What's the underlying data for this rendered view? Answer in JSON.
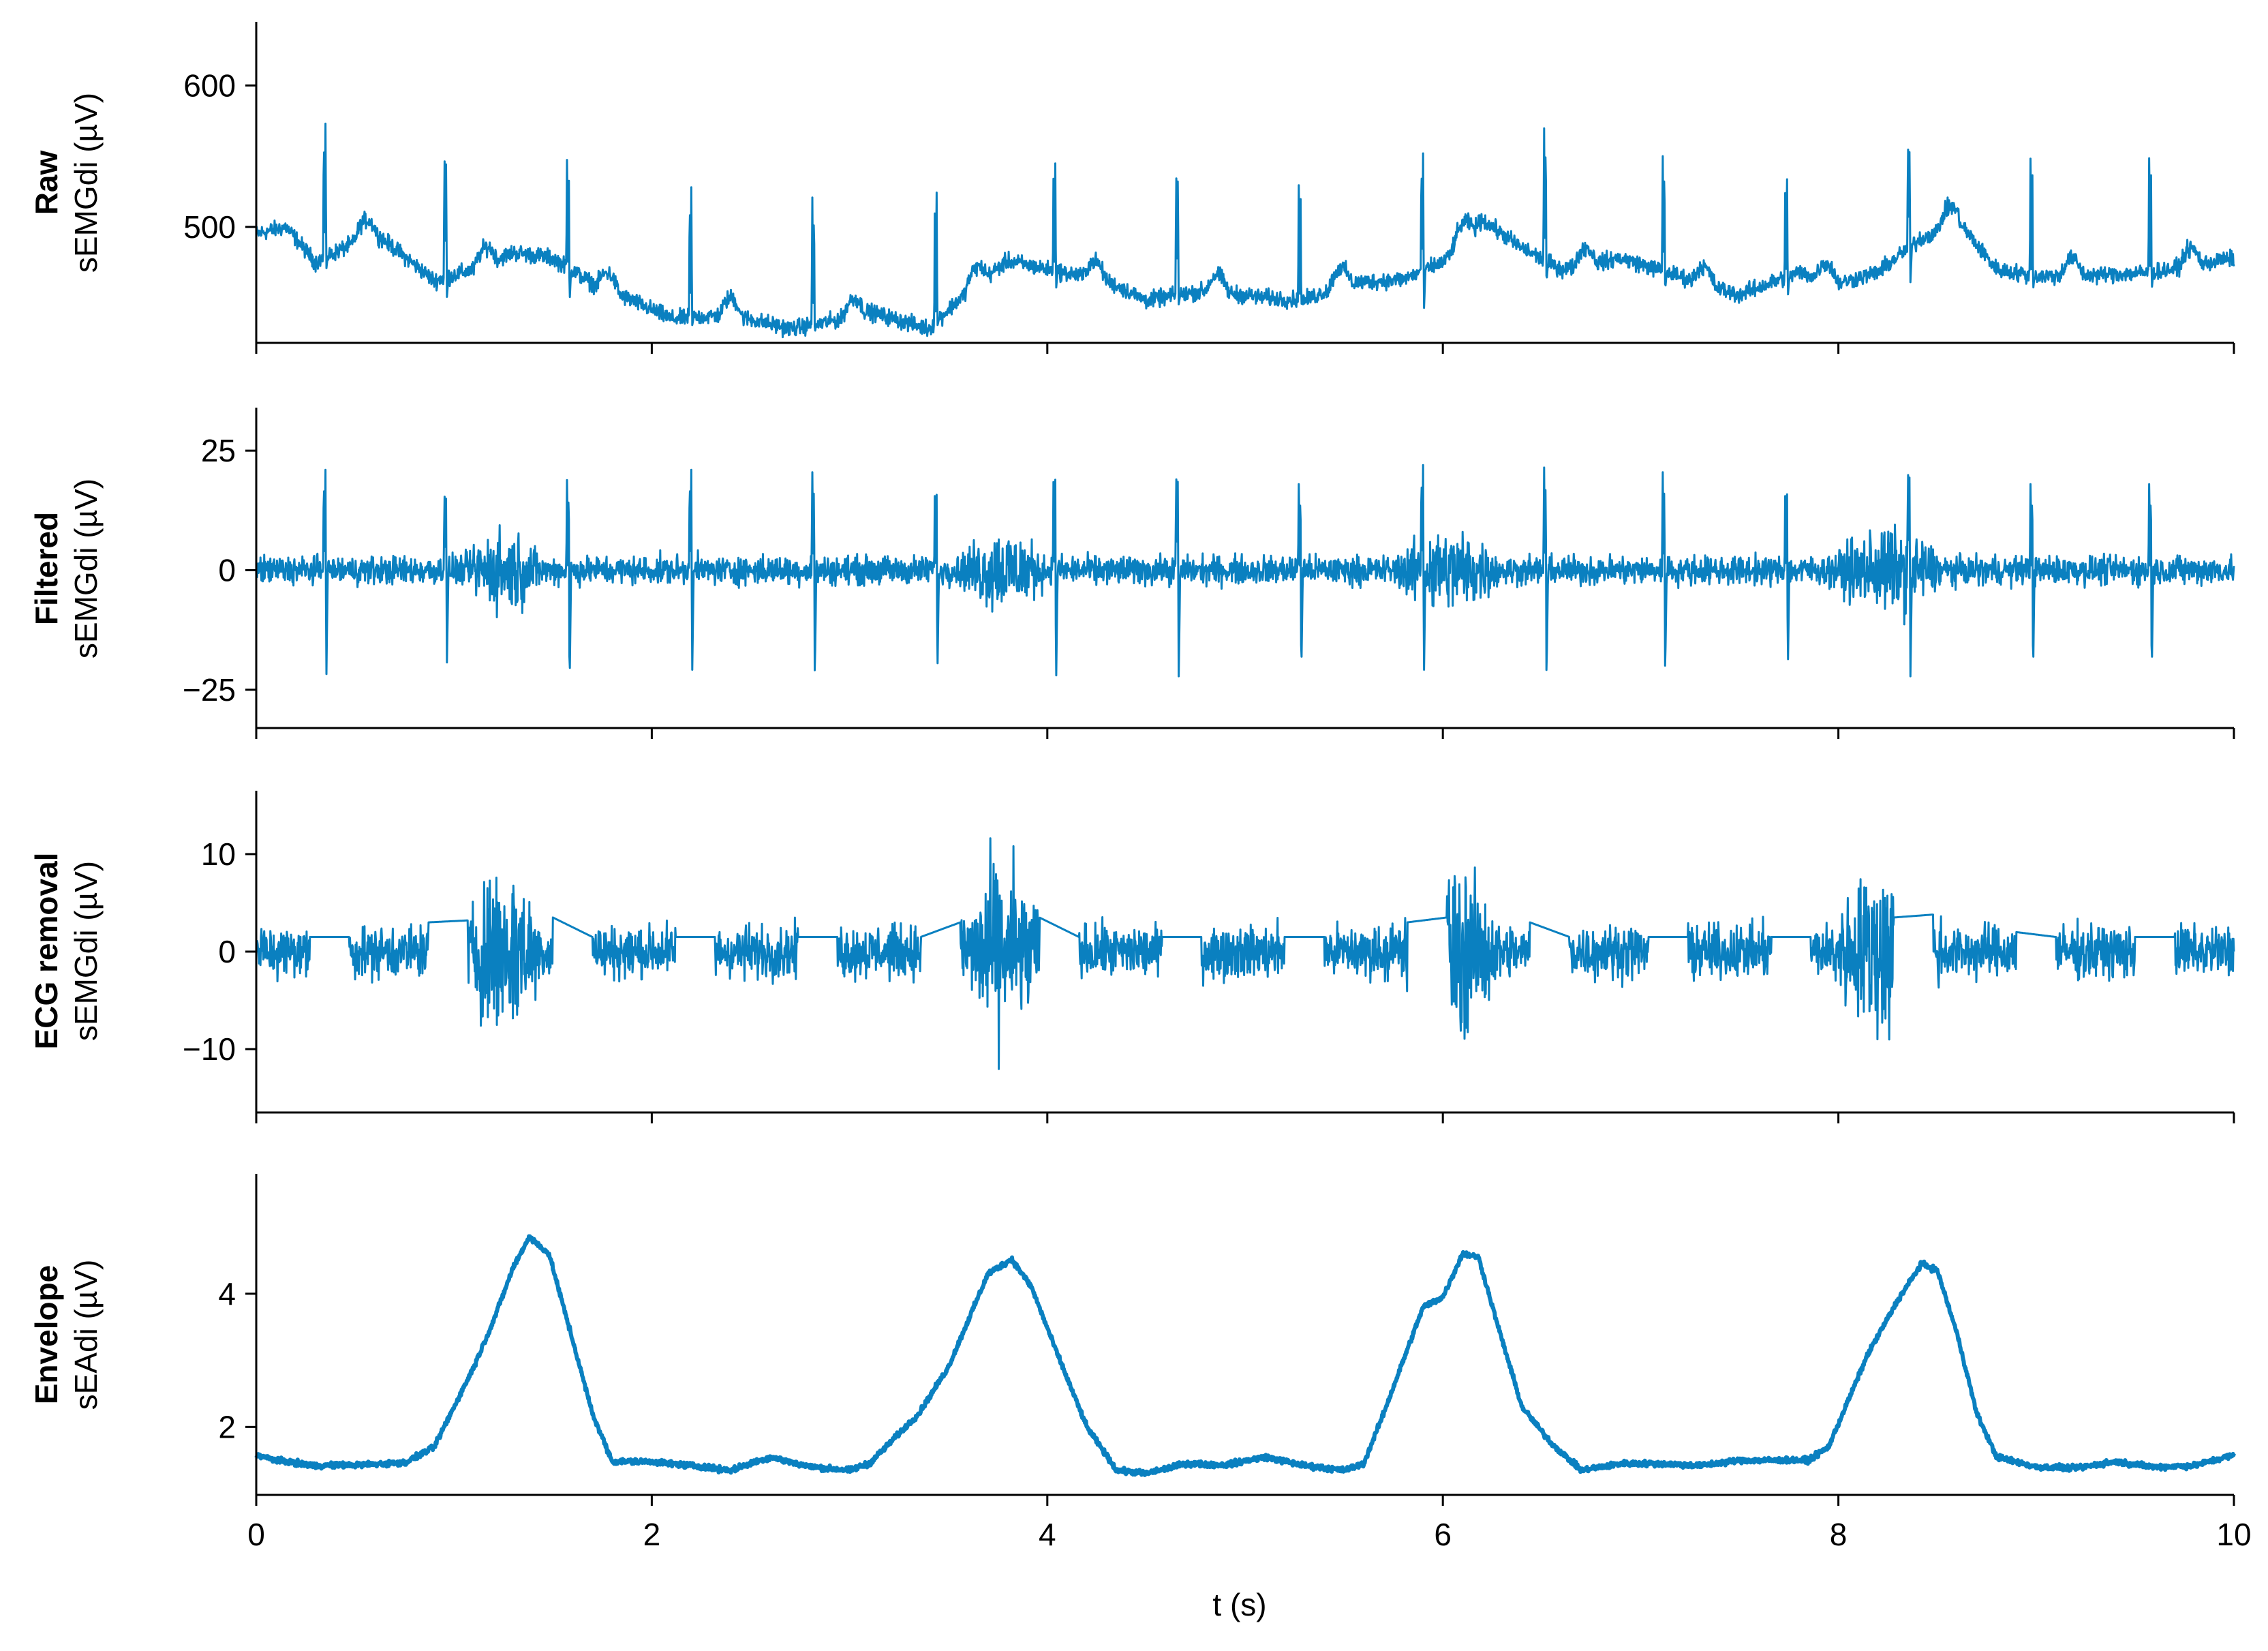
{
  "figure": {
    "line_color": "#0a80c0",
    "axis_color": "#000000"
  },
  "chart_data": [
    {
      "type": "line",
      "panel_title": "Raw",
      "ylabel": "sEMGdi (µV)",
      "xlim": [
        0,
        10
      ],
      "ylim": [
        418,
        645
      ],
      "yticks": [
        500,
        600
      ],
      "ytick_labels": [
        "500",
        "600"
      ],
      "signal": {
        "baseline_points": [
          [
            0,
            495
          ],
          [
            0.15,
            500
          ],
          [
            0.3,
            475
          ],
          [
            0.6,
            496
          ],
          [
            0.9,
            462
          ],
          [
            1.1,
            470
          ],
          [
            1.3,
            482
          ],
          [
            1.5,
            478
          ],
          [
            1.7,
            460
          ],
          [
            1.9,
            448
          ],
          [
            2.1,
            435
          ],
          [
            2.4,
            438
          ],
          [
            2.7,
            428
          ],
          [
            2.9,
            433
          ],
          [
            3.1,
            440
          ],
          [
            3.4,
            428
          ],
          [
            3.6,
            455
          ],
          [
            3.8,
            476
          ],
          [
            4.0,
            470
          ],
          [
            4.3,
            462
          ],
          [
            4.5,
            448
          ],
          [
            4.8,
            455
          ],
          [
            5.1,
            450
          ],
          [
            5.3,
            448
          ],
          [
            5.5,
            460
          ],
          [
            5.8,
            463
          ],
          [
            6.0,
            475
          ],
          [
            6.2,
            505
          ],
          [
            6.4,
            485
          ],
          [
            6.6,
            470
          ],
          [
            6.9,
            478
          ],
          [
            7.2,
            465
          ],
          [
            7.5,
            452
          ],
          [
            7.8,
            468
          ],
          [
            8.0,
            460
          ],
          [
            8.2,
            468
          ],
          [
            8.4,
            490
          ],
          [
            8.6,
            505
          ],
          [
            8.8,
            470
          ],
          [
            9.0,
            465
          ],
          [
            9.3,
            466
          ],
          [
            9.6,
            468
          ],
          [
            10.0,
            478
          ]
        ],
        "spike_times": [
          0.35,
          0.96,
          1.58,
          2.2,
          2.82,
          3.44,
          4.04,
          4.66,
          5.28,
          5.9,
          6.52,
          7.12,
          7.74,
          8.36,
          8.98,
          9.58
        ],
        "spike_peaks": [
          573,
          555,
          560,
          528,
          523,
          537,
          557,
          543,
          543,
          552,
          572,
          552,
          545,
          562,
          562,
          562
        ],
        "spike_troughs": [
          470,
          450,
          445,
          430,
          425,
          430,
          455,
          445,
          445,
          440,
          460,
          455,
          450,
          460,
          455,
          455
        ],
        "noise_amplitude": 5
      }
    },
    {
      "type": "line",
      "panel_title": "Filtered",
      "ylabel": "sEMGdi (µV)",
      "xlim": [
        0,
        10
      ],
      "ylim": [
        -33,
        34
      ],
      "yticks": [
        -25,
        0,
        25
      ],
      "ytick_labels": [
        "−25",
        "0",
        "25"
      ],
      "signal": {
        "spike_times": [
          0.35,
          0.96,
          1.58,
          2.2,
          2.82,
          3.44,
          4.04,
          4.66,
          5.28,
          5.9,
          6.52,
          7.12,
          7.74,
          8.36,
          8.98,
          9.58
        ],
        "spike_peaks": [
          21,
          17,
          22,
          21,
          21,
          21,
          25,
          21,
          21,
          22,
          22,
          21,
          21,
          22,
          21,
          21
        ],
        "spike_troughs": [
          -24,
          -20,
          -26,
          -23,
          -23,
          -23,
          -26,
          -23,
          -23,
          -23,
          -23,
          -22,
          -22,
          -23,
          -23,
          -23
        ],
        "noise_amplitude": 2.5,
        "bursts": [
          [
            1.05,
            1.45
          ],
          [
            3.55,
            4.0
          ],
          [
            5.75,
            6.3
          ],
          [
            7.95,
            8.55
          ]
        ],
        "burst_amplitude": 9
      }
    },
    {
      "type": "line",
      "panel_title": "ECG removal",
      "ylabel": "sEMGdi (µV)",
      "xlim": [
        0,
        10
      ],
      "ylim": [
        -16.5,
        16.5
      ],
      "yticks": [
        -10,
        0,
        10
      ],
      "ytick_labels": [
        "−10",
        "0",
        "10"
      ],
      "signal": {
        "gaps": [
          [
            0.27,
            0.47
          ],
          [
            0.87,
            1.07
          ],
          [
            1.5,
            1.7
          ],
          [
            2.12,
            2.32
          ],
          [
            2.74,
            2.94
          ],
          [
            3.36,
            3.56
          ],
          [
            3.96,
            4.16
          ],
          [
            4.58,
            4.78
          ],
          [
            5.2,
            5.4
          ],
          [
            5.82,
            6.02
          ],
          [
            6.44,
            6.64
          ],
          [
            7.04,
            7.24
          ],
          [
            7.66,
            7.86
          ],
          [
            8.28,
            8.48
          ],
          [
            8.9,
            9.1
          ],
          [
            9.5,
            9.7
          ]
        ],
        "gap_levels": [
          [
            1.5,
            1.5
          ],
          [
            3.0,
            3.2
          ],
          [
            3.5,
            1.5
          ],
          [
            1.5,
            1.5
          ],
          [
            1.5,
            1.5
          ],
          [
            1.5,
            3.0
          ],
          [
            3.5,
            1.5
          ],
          [
            1.5,
            1.5
          ],
          [
            1.5,
            1.5
          ],
          [
            3.0,
            3.5
          ],
          [
            3.0,
            1.5
          ],
          [
            1.5,
            1.5
          ],
          [
            1.5,
            1.5
          ],
          [
            3.5,
            3.8
          ],
          [
            2.0,
            1.5
          ],
          [
            1.5,
            1.5
          ]
        ],
        "noise_amplitude": 2.5,
        "bursts": [
          [
            1.05,
            1.45
          ],
          [
            3.55,
            4.0
          ],
          [
            5.75,
            6.3
          ],
          [
            7.95,
            8.55
          ]
        ],
        "burst_amplitude": 9
      }
    },
    {
      "type": "line",
      "panel_title": "Envelope",
      "ylabel": "sEAdi (µV)",
      "xlabel": "t (s)",
      "xlim": [
        0,
        10
      ],
      "ylim": [
        0.98,
        5.8
      ],
      "yticks": [
        2,
        4
      ],
      "ytick_labels": [
        "2",
        "4"
      ],
      "xticks": [
        0,
        2,
        4,
        6,
        8,
        10
      ],
      "xtick_labels": [
        "0",
        "2",
        "4",
        "6",
        "8",
        "10"
      ],
      "signal": {
        "points": [
          [
            0,
            1.58
          ],
          [
            0.1,
            1.5
          ],
          [
            0.3,
            1.42
          ],
          [
            0.5,
            1.43
          ],
          [
            0.75,
            1.46
          ],
          [
            0.9,
            1.7
          ],
          [
            1.0,
            2.3
          ],
          [
            1.1,
            2.9
          ],
          [
            1.2,
            3.6
          ],
          [
            1.3,
            4.4
          ],
          [
            1.38,
            4.85
          ],
          [
            1.48,
            4.6
          ],
          [
            1.6,
            3.3
          ],
          [
            1.7,
            2.2
          ],
          [
            1.8,
            1.48
          ],
          [
            2.0,
            1.48
          ],
          [
            2.2,
            1.42
          ],
          [
            2.4,
            1.35
          ],
          [
            2.6,
            1.55
          ],
          [
            2.8,
            1.4
          ],
          [
            3.0,
            1.35
          ],
          [
            3.1,
            1.45
          ],
          [
            3.2,
            1.75
          ],
          [
            3.35,
            2.2
          ],
          [
            3.5,
            2.9
          ],
          [
            3.6,
            3.6
          ],
          [
            3.7,
            4.3
          ],
          [
            3.82,
            4.52
          ],
          [
            3.92,
            4.1
          ],
          [
            4.05,
            3.1
          ],
          [
            4.2,
            2.0
          ],
          [
            4.35,
            1.35
          ],
          [
            4.5,
            1.3
          ],
          [
            4.7,
            1.45
          ],
          [
            4.9,
            1.43
          ],
          [
            5.1,
            1.55
          ],
          [
            5.3,
            1.42
          ],
          [
            5.5,
            1.35
          ],
          [
            5.6,
            1.45
          ],
          [
            5.7,
            2.2
          ],
          [
            5.8,
            3.0
          ],
          [
            5.9,
            3.8
          ],
          [
            6.0,
            3.95
          ],
          [
            6.1,
            4.6
          ],
          [
            6.18,
            4.55
          ],
          [
            6.28,
            3.5
          ],
          [
            6.4,
            2.3
          ],
          [
            6.55,
            1.75
          ],
          [
            6.7,
            1.35
          ],
          [
            6.9,
            1.45
          ],
          [
            7.1,
            1.45
          ],
          [
            7.3,
            1.42
          ],
          [
            7.5,
            1.5
          ],
          [
            7.7,
            1.5
          ],
          [
            7.85,
            1.5
          ],
          [
            7.95,
            1.7
          ],
          [
            8.05,
            2.4
          ],
          [
            8.15,
            3.1
          ],
          [
            8.3,
            3.9
          ],
          [
            8.42,
            4.45
          ],
          [
            8.5,
            4.35
          ],
          [
            8.6,
            3.4
          ],
          [
            8.7,
            2.2
          ],
          [
            8.8,
            1.55
          ],
          [
            9.0,
            1.4
          ],
          [
            9.2,
            1.38
          ],
          [
            9.4,
            1.48
          ],
          [
            9.6,
            1.4
          ],
          [
            9.8,
            1.42
          ],
          [
            9.9,
            1.5
          ],
          [
            10.0,
            1.58
          ]
        ],
        "noise_amplitude": 0.035
      }
    }
  ]
}
